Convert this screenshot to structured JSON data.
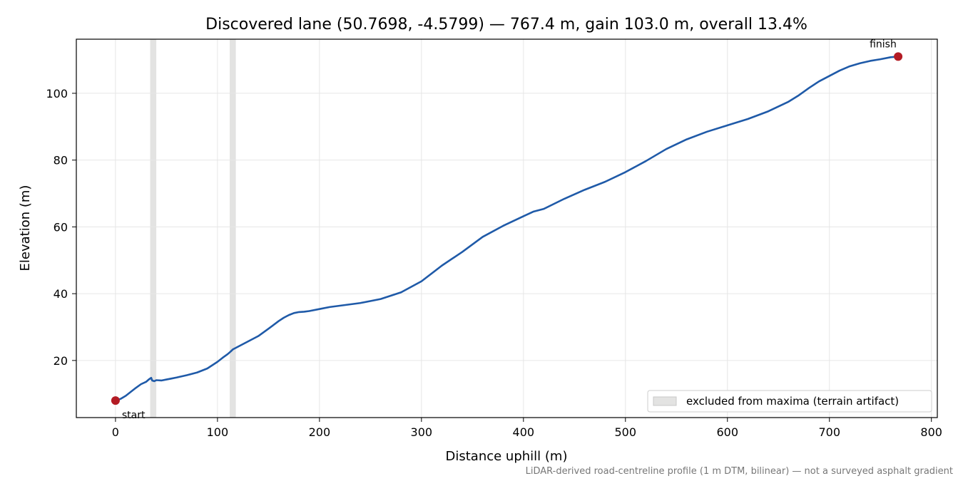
{
  "chart_data": {
    "type": "line",
    "title": "Discovered lane (50.7698, -4.5799) — 767.4 m, gain 103.0 m, overall 13.4%",
    "xlabel": "Distance uphill (m)",
    "ylabel": "Elevation (m)",
    "xlim": [
      -38.4,
      805.8
    ],
    "ylim": [
      2.9,
      116.2
    ],
    "xticks": [
      0,
      100,
      200,
      300,
      400,
      500,
      600,
      700,
      800
    ],
    "xtick_labels": [
      "0",
      "100",
      "200",
      "300",
      "400",
      "500",
      "600",
      "700",
      "800"
    ],
    "yticks": [
      20,
      40,
      60,
      80,
      100
    ],
    "ytick_labels": [
      "20",
      "40",
      "60",
      "80",
      "100"
    ],
    "grid": true,
    "legend_position": "lower-right",
    "legend": {
      "label": "excluded from maxima (terrain artifact)",
      "color": "#e3e3e2"
    },
    "excluded_bands": [
      {
        "x0": 34,
        "x1": 40
      },
      {
        "x0": 112,
        "x1": 118
      }
    ],
    "series": [
      {
        "color": "#1f5aa8",
        "x": [
          0,
          5,
          10,
          15,
          20,
          25,
          30,
          33,
          35,
          36,
          38,
          40,
          45,
          50,
          55,
          60,
          70,
          80,
          90,
          100,
          105,
          110,
          113,
          115,
          120,
          130,
          140,
          150,
          160,
          165,
          170,
          175,
          180,
          185,
          190,
          200,
          210,
          220,
          240,
          260,
          280,
          300,
          320,
          340,
          360,
          380,
          400,
          410,
          420,
          440,
          460,
          480,
          500,
          520,
          540,
          560,
          580,
          600,
          620,
          640,
          660,
          670,
          680,
          690,
          700,
          710,
          720,
          730,
          740,
          750,
          760,
          767.4
        ],
        "y": [
          8.0,
          8.5,
          9.4,
          10.6,
          11.8,
          12.9,
          13.6,
          14.4,
          14.8,
          14.0,
          13.8,
          14.1,
          14.0,
          14.3,
          14.6,
          14.9,
          15.6,
          16.4,
          17.6,
          19.6,
          20.8,
          21.9,
          22.7,
          23.3,
          24.1,
          25.7,
          27.3,
          29.5,
          31.8,
          32.8,
          33.6,
          34.2,
          34.5,
          34.6,
          34.8,
          35.4,
          36.0,
          36.4,
          37.2,
          38.4,
          40.4,
          43.7,
          48.4,
          52.5,
          57.0,
          60.3,
          63.2,
          64.6,
          65.4,
          68.4,
          71.1,
          73.5,
          76.4,
          79.7,
          83.3,
          86.2,
          88.5,
          90.4,
          92.3,
          94.6,
          97.5,
          99.4,
          101.6,
          103.6,
          105.2,
          106.8,
          108.1,
          109.0,
          109.7,
          110.2,
          110.8,
          111.0
        ]
      }
    ],
    "markers": [
      {
        "x": 0,
        "y": 8.0,
        "label": "start",
        "color": "#b31b24"
      },
      {
        "x": 767.4,
        "y": 111.0,
        "label": "finish",
        "color": "#b31b24"
      }
    ],
    "footnote": "LiDAR-derived road-centreline profile (1 m DTM, bilinear) — not a surveyed asphalt gradient"
  }
}
